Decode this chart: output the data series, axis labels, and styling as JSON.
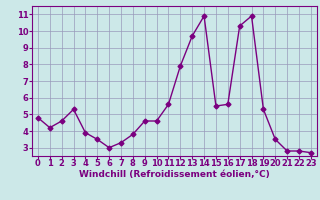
{
  "x": [
    0,
    1,
    2,
    3,
    4,
    5,
    6,
    7,
    8,
    9,
    10,
    11,
    12,
    13,
    14,
    15,
    16,
    17,
    18,
    19,
    20,
    21,
    22,
    23
  ],
  "y": [
    4.8,
    4.2,
    4.6,
    5.3,
    3.9,
    3.5,
    3.0,
    3.3,
    3.8,
    4.6,
    4.6,
    5.6,
    7.9,
    9.7,
    10.9,
    5.5,
    5.6,
    10.3,
    10.9,
    5.3,
    3.5,
    2.8,
    2.8,
    2.7
  ],
  "line_color": "#7b0080",
  "marker": "D",
  "marker_size": 2.5,
  "line_width": 1.0,
  "bg_color": "#cce8e8",
  "grid_color": "#9999bb",
  "axis_color": "#7b0080",
  "xlabel": "Windchill (Refroidissement éolien,°C)",
  "xlabel_color": "#7b0080",
  "tick_color": "#7b0080",
  "xlim": [
    -0.5,
    23.5
  ],
  "ylim": [
    2.5,
    11.5
  ],
  "yticks": [
    3,
    4,
    5,
    6,
    7,
    8,
    9,
    10,
    11
  ],
  "xticks": [
    0,
    1,
    2,
    3,
    4,
    5,
    6,
    7,
    8,
    9,
    10,
    11,
    12,
    13,
    14,
    15,
    16,
    17,
    18,
    19,
    20,
    21,
    22,
    23
  ],
  "xlabel_fontsize": 6.5,
  "tick_fontsize": 6.0
}
